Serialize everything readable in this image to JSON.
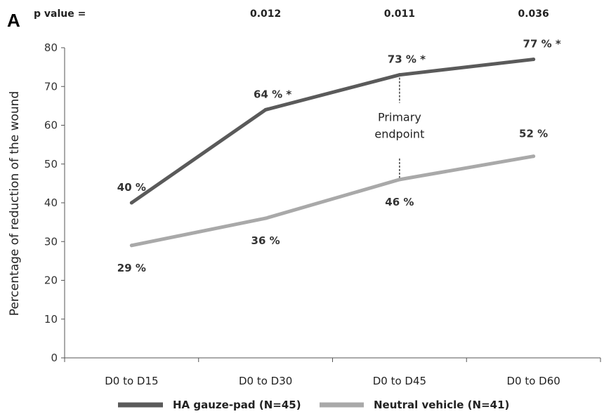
{
  "chart_data": {
    "type": "line",
    "panel_label": "A",
    "pvalue_label": "p value =",
    "pvalues": [
      "0.012",
      "0.011",
      "0.036"
    ],
    "categories": [
      "D0 to D15",
      "D0 to D30",
      "D0 to D45",
      "D0 to D60"
    ],
    "ylabel": "Percentage of reduction of the wound",
    "ylim": [
      0,
      80
    ],
    "yticks": [
      0,
      10,
      20,
      30,
      40,
      50,
      60,
      70,
      80
    ],
    "grid": false,
    "legend_position": "bottom",
    "series": [
      {
        "name": "HA gauze-pad (N=45)",
        "color": "#5a5a5a",
        "values": [
          40,
          64,
          73,
          77
        ],
        "labels": [
          "40 %",
          "64 % *",
          "73 % *",
          "77 % *"
        ]
      },
      {
        "name": "Neutral vehicle (N=41)",
        "color": "#a9a9a9",
        "values": [
          29,
          36,
          46,
          52
        ],
        "labels": [
          "29 %",
          "36 %",
          "46 %",
          "52 %"
        ]
      }
    ],
    "annotation": {
      "lines": [
        "Primary",
        "endpoint"
      ],
      "category_index": 2
    }
  }
}
